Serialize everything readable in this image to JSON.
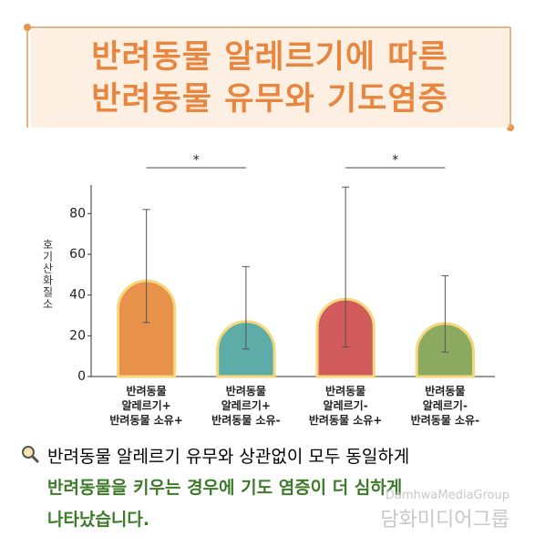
{
  "header": {
    "title_lines": [
      "반려동물 알레르기에 따른",
      "반려동물 유무와 기도염증"
    ]
  },
  "chart_data": {
    "type": "bar",
    "y_label": "호기산화질소",
    "categories": [
      "반려동물\n알레르기+\n반려동물 소유+",
      "반려동물\n알레르기+\n반려동물 소유-",
      "반려동물\n알레르기-\n반려동물 소유+",
      "반려동물\n알레르기-\n반려동물 소유-"
    ],
    "values": [
      47,
      27,
      38,
      26
    ],
    "error_low": [
      26.5,
      13.5,
      14.5,
      12
    ],
    "error_high": [
      82,
      54,
      93,
      49.5
    ],
    "colors": [
      "#e8914a",
      "#5eaca7",
      "#d25b5b",
      "#8caa5f"
    ],
    "ylim": [
      0,
      94
    ],
    "yticks": [
      0,
      20,
      40,
      60,
      80
    ],
    "annotations": [
      "*",
      "*"
    ]
  },
  "caption": {
    "line": "반려동물 알레르기 유무와 상관없이 모두 동일하게",
    "highlight_lines": [
      "반려동물을 키우는 경우에 기도 염증이 더 심하게",
      "나타났습니다."
    ]
  },
  "watermark": {
    "latin": "DamhwaMediaGroup",
    "korean": "담화미디어그룹"
  }
}
